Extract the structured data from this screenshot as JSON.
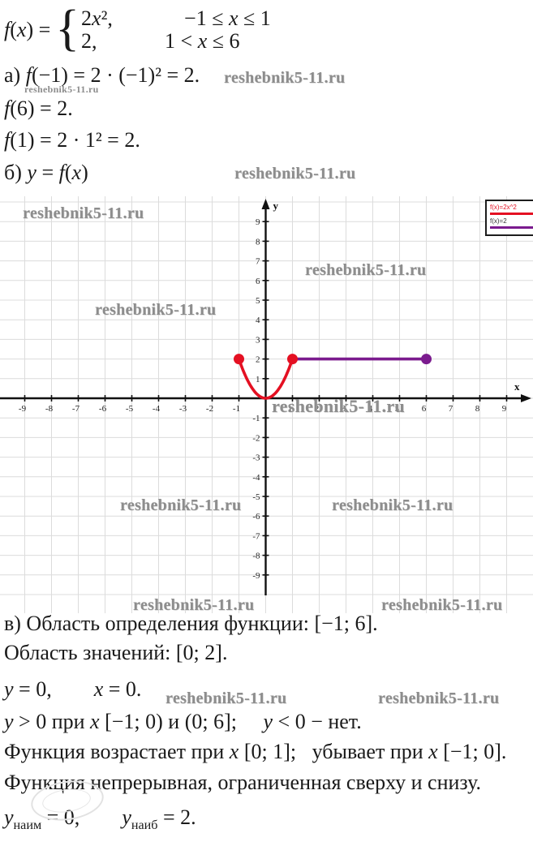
{
  "watermark": {
    "text": "reshebnik5-11.ru"
  },
  "problem": {
    "piecewise": {
      "lhs": [
        {
          "t": "f",
          "s": "i"
        },
        {
          "t": "(",
          "s": "n"
        },
        {
          "t": "x",
          "s": "i"
        },
        {
          "t": ") = ",
          "s": "n"
        }
      ],
      "brace": "{",
      "rows": [
        {
          "expr": [
            {
              "t": "2",
              "s": "n"
            },
            {
              "t": "x",
              "s": "i"
            },
            {
              "t": "²,",
              "s": "n"
            }
          ],
          "cond": [
            {
              "t": "−1 ≤ ",
              "s": "n"
            },
            {
              "t": "x",
              "s": "i"
            },
            {
              "t": " ≤ 1",
              "s": "n"
            }
          ]
        },
        {
          "expr": [
            {
              "t": "2,",
              "s": "n"
            }
          ],
          "cond": [
            {
              "t": "1 < ",
              "s": "n"
            },
            {
              "t": "x",
              "s": "i"
            },
            {
              "t": " ≤ 6",
              "s": "n"
            }
          ]
        }
      ]
    },
    "line_a": [
      {
        "t": "а) ",
        "s": "n"
      },
      {
        "t": "f",
        "s": "i"
      },
      {
        "t": "(−1) = 2 · (−1)² = 2.",
        "s": "n"
      }
    ],
    "line_f6": [
      {
        "t": "f",
        "s": "i"
      },
      {
        "t": "(6) = 2.",
        "s": "n"
      }
    ],
    "line_f1": [
      {
        "t": "f",
        "s": "i"
      },
      {
        "t": "(1) = 2 · 1² = 2.",
        "s": "n"
      }
    ],
    "line_b": [
      {
        "t": "б) ",
        "s": "n"
      },
      {
        "t": "y",
        "s": "i"
      },
      {
        "t": " = ",
        "s": "n"
      },
      {
        "t": "f",
        "s": "i"
      },
      {
        "t": "(",
        "s": "n"
      },
      {
        "t": "x",
        "s": "i"
      },
      {
        "t": ")",
        "s": "n"
      }
    ]
  },
  "solution": {
    "line_v": [
      {
        "t": "в) Область определения функции: [−1; 6].",
        "s": "n"
      }
    ],
    "line_range": [
      {
        "t": "Область значений: [0; 2].",
        "s": "n"
      }
    ],
    "line_zero": [
      {
        "t": "y",
        "s": "i"
      },
      {
        "t": " = 0,        ",
        "s": "n"
      },
      {
        "t": "x",
        "s": "i"
      },
      {
        "t": " = 0.",
        "s": "n"
      }
    ],
    "line_pos": [
      {
        "t": "y",
        "s": "i"
      },
      {
        "t": " > 0 при ",
        "s": "n"
      },
      {
        "t": "x",
        "s": "i"
      },
      {
        "t": " [−1; 0) и (0; 6];     ",
        "s": "n"
      },
      {
        "t": "y",
        "s": "i"
      },
      {
        "t": " < 0 − нет.",
        "s": "n"
      }
    ],
    "line_mono": [
      {
        "t": "Функция возрастает при ",
        "s": "n"
      },
      {
        "t": "x",
        "s": "i"
      },
      {
        "t": " [0; 1];   убывает при ",
        "s": "n"
      },
      {
        "t": "x",
        "s": "i"
      },
      {
        "t": " [−1; 0].",
        "s": "n"
      }
    ],
    "line_cont": [
      {
        "t": "Функция непрерывная, ограниченная сверху и снизу.",
        "s": "n"
      }
    ],
    "line_minmax": [
      {
        "t": "y",
        "s": "i"
      },
      {
        "t": "наим",
        "s": "sub"
      },
      {
        "t": " = 0,        ",
        "s": "n"
      },
      {
        "t": "y",
        "s": "i"
      },
      {
        "t": "наиб",
        "s": "sub"
      },
      {
        "t": " = 2.",
        "s": "n"
      }
    ]
  },
  "chart_data": {
    "type": "line",
    "title": "",
    "xlabel": "x",
    "ylabel": "y",
    "xlim": [
      -9.9,
      10
    ],
    "ylim": [
      -10.2,
      10.2
    ],
    "grid": true,
    "x_ticks": [
      -9,
      -8,
      -7,
      -6,
      -5,
      -4,
      -3,
      -2,
      -1,
      1,
      2,
      3,
      4,
      5,
      6,
      7,
      8,
      9
    ],
    "y_ticks": [
      -9,
      -8,
      -7,
      -6,
      -5,
      -4,
      -3,
      -2,
      -1,
      1,
      2,
      3,
      4,
      5,
      6,
      7,
      8,
      9
    ],
    "series": [
      {
        "name": "f(x)=2x^2",
        "kind": "parabola",
        "coef_a": 2,
        "domain": [
          -1,
          1
        ],
        "color": "#e41022",
        "key_points": [
          [
            -1,
            2
          ],
          [
            0,
            0
          ],
          [
            1,
            2
          ]
        ]
      },
      {
        "name": "f(x)=2",
        "kind": "segment",
        "from": [
          1,
          2
        ],
        "to": [
          6,
          2
        ],
        "color": "#7b1b8e"
      }
    ],
    "markers": [
      {
        "x": -1,
        "y": 2,
        "color": "#e41022"
      },
      {
        "x": 1,
        "y": 2,
        "color": "#e41022"
      },
      {
        "x": 6,
        "y": 2,
        "color": "#7b1b8e"
      }
    ],
    "legend": {
      "position": "top-right",
      "entries": [
        {
          "label": "f(x)=2x^2",
          "color": "#e41022"
        },
        {
          "label": "f(x)=2",
          "color": "#7b1b8e"
        }
      ]
    },
    "grid_color": "#dcdcdc",
    "axis_color": "#111111"
  }
}
